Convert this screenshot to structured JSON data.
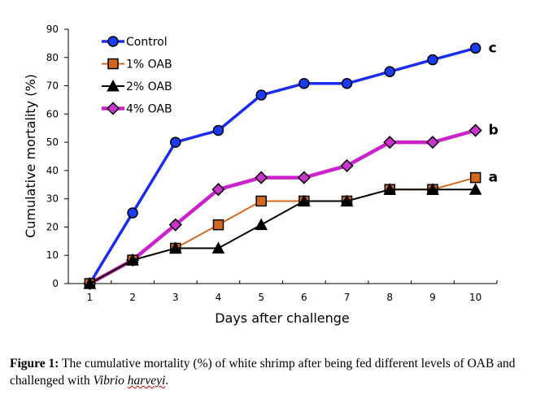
{
  "chart_data": {
    "type": "line",
    "title": "",
    "xlabel": "Days after challenge",
    "ylabel": "Cumulative mortality (%)",
    "x": [
      1,
      2,
      3,
      4,
      5,
      6,
      7,
      8,
      9,
      10
    ],
    "x_tick_labels": [
      "1",
      "2",
      "3",
      "4",
      "5",
      "6",
      "7",
      "8",
      "9",
      "10"
    ],
    "ylim": [
      0,
      90
    ],
    "y_ticks": [
      0,
      10,
      20,
      30,
      40,
      50,
      60,
      70,
      80,
      90
    ],
    "grid": false,
    "legend_position": "top-left",
    "series": [
      {
        "name": "Control",
        "color": "#1a2cf0",
        "marker": "circle",
        "marker_fill": "#1a3cf5",
        "values": [
          0,
          25,
          50,
          54.2,
          66.7,
          70.8,
          70.8,
          75,
          79.2,
          83.3
        ]
      },
      {
        "name": "1% OAB",
        "color": "#d2691e",
        "marker": "square",
        "marker_fill": "#d2691e",
        "values": [
          0,
          8.3,
          12.5,
          20.8,
          29.2,
          29.2,
          29.2,
          33.3,
          33.3,
          37.5
        ]
      },
      {
        "name": "2% OAB",
        "color": "#000000",
        "marker": "triangle",
        "marker_fill": "#000000",
        "values": [
          0,
          8.3,
          12.5,
          12.5,
          20.8,
          29.2,
          29.2,
          33.3,
          33.3,
          33.3
        ]
      },
      {
        "name": "4% OAB",
        "color": "#cc22cc",
        "marker": "diamond",
        "marker_fill": "#cc33cc",
        "values": [
          0,
          8.3,
          20.8,
          33.3,
          37.5,
          37.5,
          41.7,
          50,
          50,
          54.2
        ]
      }
    ],
    "annotations": [
      {
        "text": "c",
        "series": "Control"
      },
      {
        "text": "b",
        "series": "4% OAB"
      },
      {
        "text": "a",
        "series": "1% OAB"
      }
    ]
  },
  "caption": {
    "label": "Figure 1:",
    "text": " The cumulative mortality (%) of white shrimp after being fed different levels of OAB and challenged with ",
    "species_genus": "Vibrio",
    "species_epithet": "harveyi",
    "end": "."
  }
}
